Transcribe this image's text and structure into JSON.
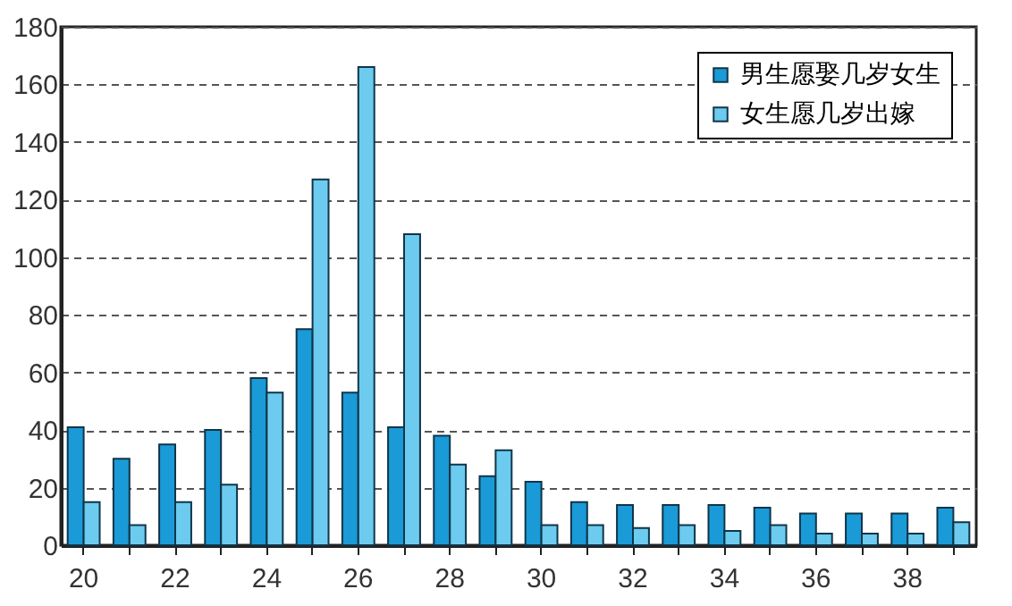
{
  "chart_data": {
    "type": "bar",
    "categories": [
      "20",
      null,
      "22",
      null,
      "24",
      null,
      "26",
      null,
      "28",
      null,
      "30",
      null,
      "32",
      null,
      "34",
      null,
      "36",
      null,
      "38",
      null
    ],
    "series": [
      {
        "name": "男生愿娶几岁女生",
        "color": "#1a9ad6",
        "values": [
          41,
          30,
          35,
          40,
          58,
          75,
          53,
          41,
          38,
          24,
          22,
          15,
          14,
          14,
          14,
          13,
          11,
          11,
          11,
          13
        ]
      },
      {
        "name": "女生愿几岁出嫁",
        "color": "#6ccbee",
        "values": [
          15,
          7,
          15,
          21,
          53,
          127,
          166,
          108,
          28,
          33,
          7,
          7,
          6,
          7,
          5,
          7,
          4,
          4,
          4,
          8
        ]
      }
    ],
    "ylim": [
      0,
      180
    ],
    "yticks": [
      0,
      20,
      40,
      60,
      80,
      100,
      120,
      140,
      160,
      180
    ],
    "grid": "y",
    "legend": "top right"
  }
}
